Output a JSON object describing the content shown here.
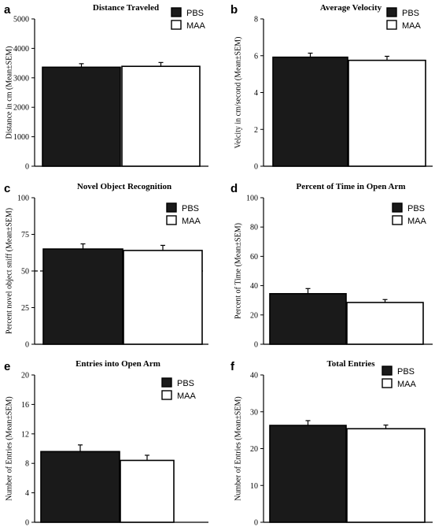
{
  "colors": {
    "pbs": "#1a1a1a",
    "maa": "#ffffff",
    "axis": "#000000"
  },
  "chart_data": [
    {
      "panel": "a",
      "type": "bar",
      "title": "Distance Traveled",
      "ylabel": "Distance in cm (Mean±SEM)",
      "xlabel": "",
      "ylim": [
        0,
        5000
      ],
      "yticks": [
        0,
        1000,
        2000,
        3000,
        4000,
        5000
      ],
      "series": [
        {
          "name": "PBS",
          "value": 3360,
          "error": 120
        },
        {
          "name": "MAA",
          "value": 3390,
          "error": 130
        }
      ],
      "legend": [
        "PBS",
        "MAA"
      ],
      "legend_position": "top-right"
    },
    {
      "panel": "b",
      "type": "bar",
      "title": "Average Velocity",
      "ylabel": "Velcity in cm/second (Mean±SEM)",
      "xlabel": "",
      "ylim": [
        0,
        8
      ],
      "yticks": [
        0,
        2,
        4,
        6,
        8
      ],
      "series": [
        {
          "name": "PBS",
          "value": 5.92,
          "error": 0.22
        },
        {
          "name": "MAA",
          "value": 5.75,
          "error": 0.22
        }
      ],
      "legend": [
        "PBS",
        "MAA"
      ],
      "legend_position": "top-right"
    },
    {
      "panel": "c",
      "type": "bar",
      "title": "Novel Object Recognition",
      "ylabel": "Percent novel object sniff (Mean±SEM)",
      "xlabel": "",
      "ylim": [
        0,
        100
      ],
      "yticks": [
        0,
        25,
        50,
        75,
        100
      ],
      "reference_line": 50,
      "series": [
        {
          "name": "PBS",
          "value": 65,
          "error": 3.5
        },
        {
          "name": "MAA",
          "value": 64,
          "error": 3.5
        }
      ],
      "legend": [
        "PBS",
        "MAA"
      ],
      "legend_position": "top-right"
    },
    {
      "panel": "d",
      "type": "bar",
      "title": "Percent of Time in Open Arm",
      "ylabel": "Percent of Time (Mean±SEM)",
      "xlabel": "",
      "ylim": [
        0,
        100
      ],
      "yticks": [
        0,
        20,
        40,
        60,
        80,
        100
      ],
      "series": [
        {
          "name": "PBS",
          "value": 34.5,
          "error": 3.5
        },
        {
          "name": "MAA",
          "value": 28.5,
          "error": 2
        }
      ],
      "legend": [
        "PBS",
        "MAA"
      ],
      "legend_position": "top-right"
    },
    {
      "panel": "e",
      "type": "bar",
      "title": "Entries into Open Arm",
      "ylabel": "Number of Entries (Mean±SEM)",
      "xlabel": "",
      "ylim": [
        0,
        20
      ],
      "yticks": [
        0,
        4,
        8,
        12,
        16,
        20
      ],
      "series": [
        {
          "name": "PBS",
          "value": 9.6,
          "error": 0.9
        },
        {
          "name": "MAA",
          "value": 8.4,
          "error": 0.7
        }
      ],
      "legend": [
        "PBS",
        "MAA"
      ],
      "legend_position": "top-right"
    },
    {
      "panel": "f",
      "type": "bar",
      "title": "Total Entries",
      "ylabel": "Number of Entries (Mean±SEM)",
      "xlabel": "",
      "ylim": [
        0,
        40
      ],
      "yticks": [
        0,
        10,
        20,
        30,
        40
      ],
      "series": [
        {
          "name": "PBS",
          "value": 26.3,
          "error": 1.3
        },
        {
          "name": "MAA",
          "value": 25.4,
          "error": 1
        }
      ],
      "legend": [
        "PBS",
        "MAA"
      ],
      "legend_position": "top-right"
    }
  ]
}
